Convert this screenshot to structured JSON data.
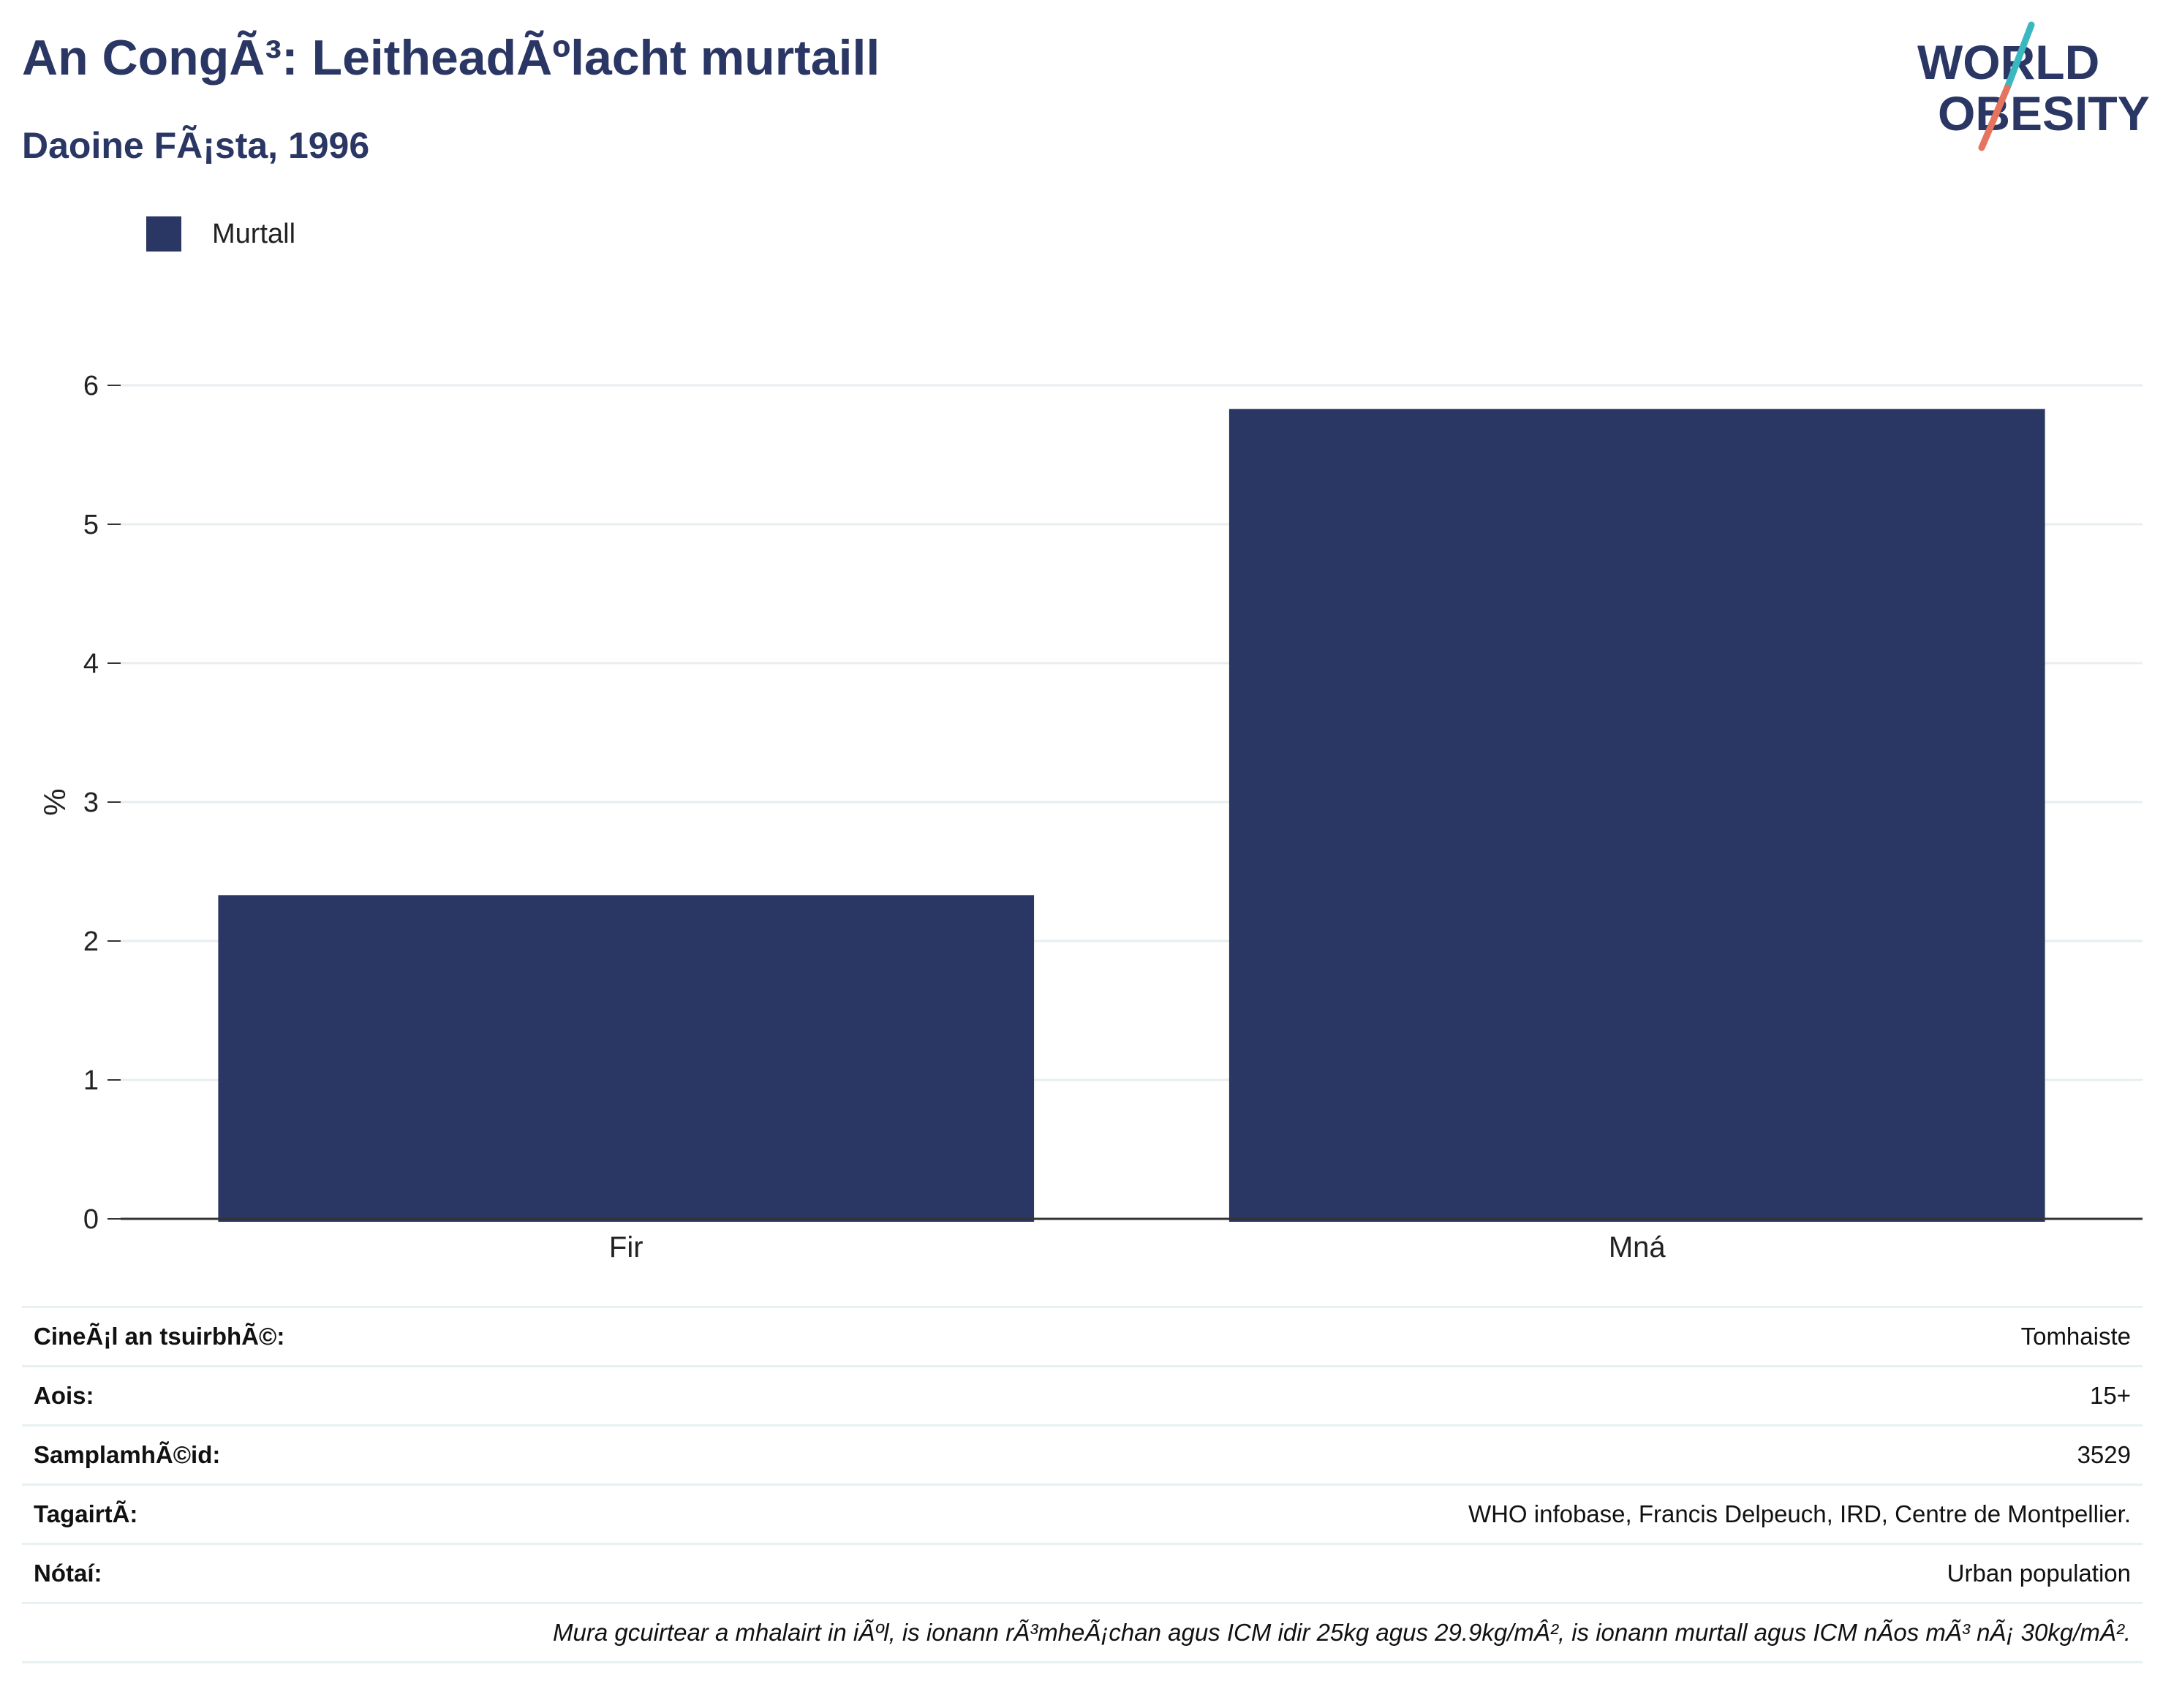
{
  "header": {
    "title": "An CongÃ³: LeitheadÃºlacht murtaill",
    "subtitle": "Daoine FÃ¡sta, 1996"
  },
  "logo": {
    "line1": "WORLD",
    "line2": "OBESITY",
    "colors": {
      "text": "#2a3663",
      "accent_teal": "#3ab8c0",
      "accent_coral": "#e5735e"
    }
  },
  "legend": {
    "label": "Murtall",
    "color": "#2a3663"
  },
  "chart_data": {
    "type": "bar",
    "categories": [
      "Fir",
      "Mná"
    ],
    "series": [
      {
        "name": "Murtall",
        "values": [
          2.33,
          5.83
        ],
        "color": "#2a3663"
      }
    ],
    "ylabel": "%",
    "xlabel": "",
    "ylim": [
      0,
      6
    ],
    "yticks": [
      0,
      1,
      2,
      3,
      4,
      5,
      6
    ],
    "grid": true,
    "legend_position": "top-left"
  },
  "info": {
    "rows": [
      {
        "key": "CineÃ¡l an tsuirbhÃ©:",
        "value": "Tomhaiste"
      },
      {
        "key": "Aois:",
        "value": "15+"
      },
      {
        "key": "SamplamhÃ©id:",
        "value": "3529"
      },
      {
        "key": "TagairtÃ:",
        "value": "WHO infobase, Francis Delpeuch, IRD, Centre de Montpellier."
      },
      {
        "key": "Nótaí:",
        "value": "Urban population"
      }
    ],
    "note": "Mura gcuirtear a mhalairt in iÃºl, is ionann rÃ³mheÃ¡chan agus ICM idir 25kg agus 29.9kg/mÂ², is ionann murtall agus ICM nÃos mÃ³ nÃ¡ 30kg/mÂ²."
  }
}
